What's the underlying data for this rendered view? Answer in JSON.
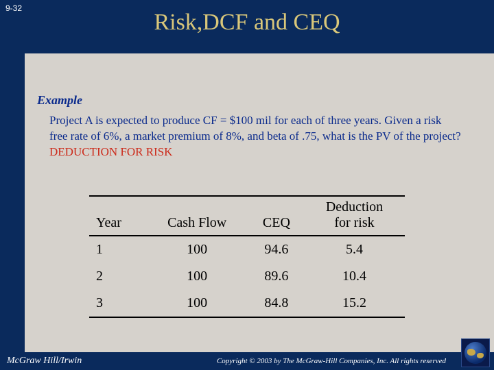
{
  "slide_number": "9-32",
  "title": "Risk,DCF and CEQ",
  "example_label": "Example",
  "body_text": "Project A is expected to produce CF = $100 mil for each of three years. Given a risk free rate of 6%, a market premium of 8%, and beta of .75, what is the PV of the project? ",
  "deduction_text": "DEDUCTION FOR RISK",
  "table": {
    "headers": [
      "Year",
      "Cash Flow",
      "CEQ",
      "Deduction for risk"
    ],
    "rows": [
      [
        "1",
        "100",
        "94.6",
        "5.4"
      ],
      [
        "2",
        "100",
        "89.6",
        "10.4"
      ],
      [
        "3",
        "100",
        "84.8",
        "15.2"
      ]
    ]
  },
  "footer_left": "McGraw Hill/Irwin",
  "footer_right": "Copyright © 2003 by The McGraw-Hill Companies, Inc. All rights reserved"
}
